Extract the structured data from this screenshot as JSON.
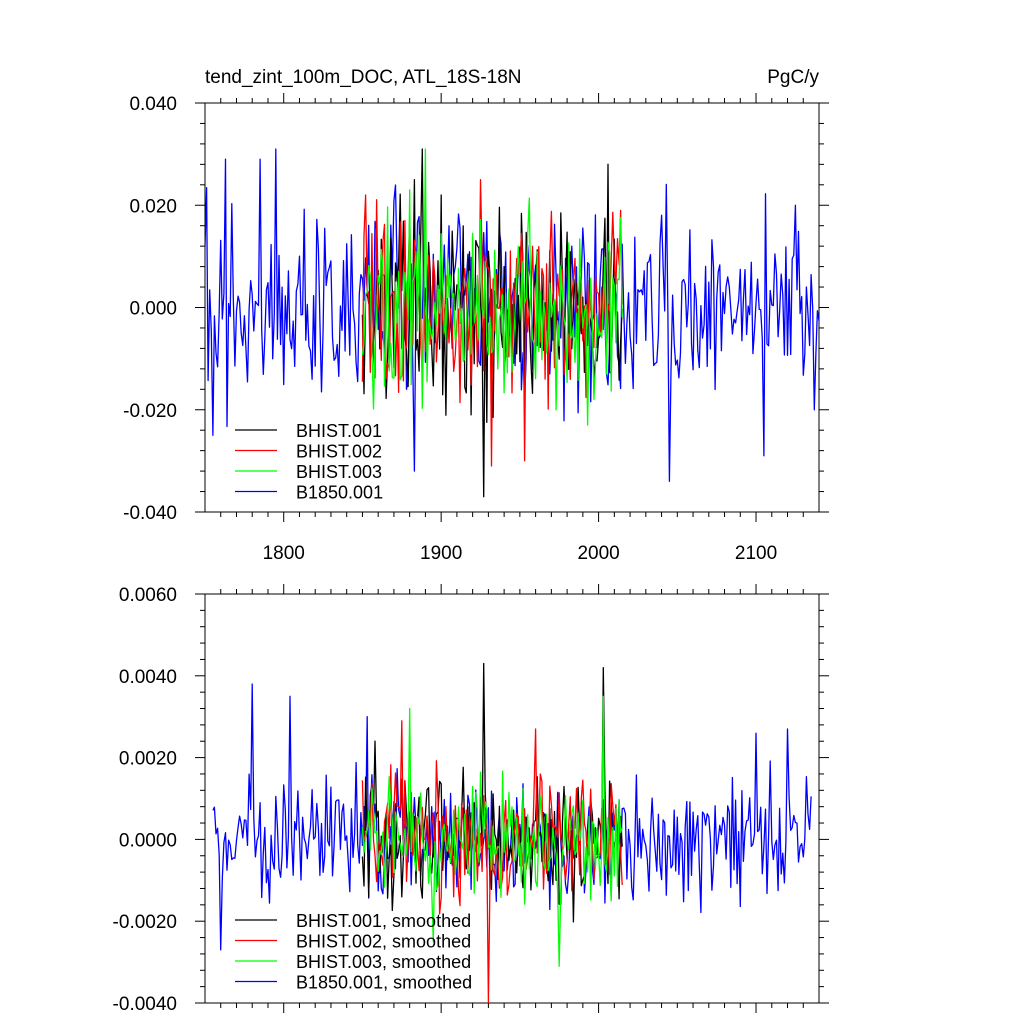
{
  "chart_data": [
    {
      "type": "line",
      "title": "tend_zint_100m_DOC, ATL_18S-18N",
      "units": "PgC/y",
      "xlim": [
        1750,
        2140
      ],
      "ylim": [
        -0.04,
        0.04
      ],
      "x_ticks": [
        1800,
        1900,
        2000,
        2100
      ],
      "x_tick_labels": [
        "1800",
        "1900",
        "2000",
        "2100"
      ],
      "y_ticks": [
        0.04,
        0.02,
        0.0,
        -0.02,
        -0.04
      ],
      "y_tick_labels": [
        "0.040",
        "0.020",
        "0.000",
        "-0.020",
        "-0.040"
      ],
      "legend_position": "bottom-left",
      "series": [
        {
          "name": "BHIST.001",
          "color": "#000000",
          "x_start": 1850,
          "x_end": 2015,
          "amp": 0.013,
          "peaks": [
            [
              1883,
              0.025
            ],
            [
              1888,
              0.031
            ],
            [
              1927,
              -0.037
            ],
            [
              2006,
              0.028
            ],
            [
              1919,
              -0.021
            ]
          ]
        },
        {
          "name": "BHIST.002",
          "color": "#ff0000",
          "x_start": 1850,
          "x_end": 2015,
          "amp": 0.013,
          "peaks": [
            [
              1852,
              0.022
            ],
            [
              1925,
              0.025
            ],
            [
              1932,
              -0.031
            ],
            [
              1953,
              -0.03
            ],
            [
              2014,
              0.019
            ]
          ]
        },
        {
          "name": "BHIST.003",
          "color": "#00ff00",
          "x_start": 1850,
          "x_end": 2015,
          "amp": 0.012,
          "peaks": [
            [
              1890,
              0.031
            ],
            [
              1880,
              0.023
            ],
            [
              1993,
              -0.023
            ],
            [
              1973,
              -0.02
            ]
          ]
        },
        {
          "name": "B1850.001",
          "color": "#0000ff",
          "x_start": 1750,
          "x_end": 2140,
          "amp": 0.013,
          "peaks": [
            [
              1763,
              0.029
            ],
            [
              1785,
              0.029
            ],
            [
              1795,
              0.031
            ],
            [
              1755,
              -0.025
            ],
            [
              1883,
              -0.032
            ],
            [
              2045,
              -0.034
            ],
            [
              2105,
              -0.029
            ],
            [
              2137,
              -0.02
            ],
            [
              2125,
              0.02
            ]
          ]
        }
      ]
    },
    {
      "type": "line",
      "xlim": [
        1750,
        2140
      ],
      "ylim": [
        -0.004,
        0.006
      ],
      "x_ticks": [
        1800,
        1900,
        2000,
        2100
      ],
      "x_tick_labels": [],
      "y_ticks": [
        0.006,
        0.004,
        0.002,
        0.0,
        -0.002,
        -0.004
      ],
      "y_tick_labels": [
        "0.0060",
        "0.0040",
        "0.0020",
        "0.0000",
        "-0.0020",
        "-0.0040"
      ],
      "legend_position": "bottom-left",
      "series": [
        {
          "name": "BHIST.001, smoothed",
          "color": "#000000",
          "x_start": 1850,
          "x_end": 2015,
          "amp": 0.0011,
          "peaks": [
            [
              1927,
              0.0043
            ],
            [
              2003,
              0.0042
            ],
            [
              1858,
              0.0024
            ]
          ]
        },
        {
          "name": "BHIST.002, smoothed",
          "color": "#ff0000",
          "x_start": 1850,
          "x_end": 2015,
          "amp": 0.0011,
          "peaks": [
            [
              1930,
              -0.004
            ],
            [
              1875,
              0.0029
            ],
            [
              1960,
              0.0027
            ]
          ]
        },
        {
          "name": "BHIST.003, smoothed",
          "color": "#00ff00",
          "x_start": 1850,
          "x_end": 2015,
          "amp": 0.001,
          "peaks": [
            [
              1880,
              0.0032
            ],
            [
              1975,
              -0.0031
            ],
            [
              2003,
              0.0035
            ],
            [
              1895,
              -0.0025
            ]
          ]
        },
        {
          "name": "B1850.001, smoothed",
          "color": "#0000ff",
          "x_start": 1755,
          "x_end": 2135,
          "amp": 0.0011,
          "peaks": [
            [
              1780,
              0.0038
            ],
            [
              1804,
              0.0035
            ],
            [
              1853,
              0.003
            ],
            [
              2120,
              0.0027
            ],
            [
              2100,
              0.0026
            ],
            [
              1760,
              -0.0027
            ]
          ]
        }
      ]
    }
  ]
}
